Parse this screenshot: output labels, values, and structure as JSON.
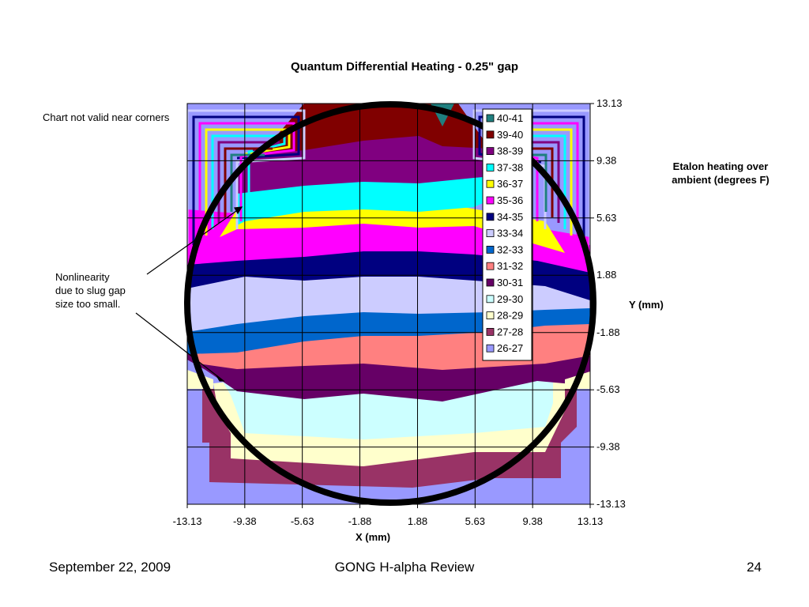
{
  "slide": {
    "title": "Quantum Differential Heating - 0.25\" gap",
    "note_corners": "Chart not valid near corners",
    "note_nonlinearity": [
      "Nonlinearity",
      "due to slug gap",
      "size too small."
    ],
    "colorbar_title": [
      "Etalon heating over",
      "ambient (degrees F)"
    ],
    "footer": {
      "date": "September 22, 2009",
      "center": "GONG H-alpha Review",
      "page": "24"
    }
  },
  "chart_data": {
    "type": "heatmap",
    "title": "Quantum Differential Heating - 0.25\" gap",
    "xlabel": "X (mm)",
    "ylabel": "Y (mm)",
    "x_ticks": [
      "-13.13",
      "-9.38",
      "-5.63",
      "-1.88",
      "1.88",
      "5.63",
      "9.38",
      "13.13"
    ],
    "y_ticks": [
      "13.13",
      "9.38",
      "5.63",
      "1.88",
      "-1.88",
      "-5.63",
      "-9.38",
      "-13.13"
    ],
    "xlim": [
      -13.13,
      13.13
    ],
    "ylim": [
      -13.13,
      13.13
    ],
    "grid": true,
    "legend_position": "top-right, inside plot",
    "legend": [
      {
        "label": "40-41",
        "color": "#1f7f7f"
      },
      {
        "label": "39-40",
        "color": "#800000"
      },
      {
        "label": "38-39",
        "color": "#800080"
      },
      {
        "label": "37-38",
        "color": "#00ffff"
      },
      {
        "label": "36-37",
        "color": "#ffff00"
      },
      {
        "label": "35-36",
        "color": "#ff00ff"
      },
      {
        "label": "34-35",
        "color": "#000080"
      },
      {
        "label": "33-34",
        "color": "#ccccff"
      },
      {
        "label": "32-33",
        "color": "#0066cc"
      },
      {
        "label": "31-32",
        "color": "#ff8080"
      },
      {
        "label": "30-31",
        "color": "#660066"
      },
      {
        "label": "29-30",
        "color": "#ccffff"
      },
      {
        "label": "28-29",
        "color": "#ffffcc"
      },
      {
        "label": "27-28",
        "color": "#993366"
      },
      {
        "label": "26-27",
        "color": "#9999ff"
      }
    ],
    "x_grid_values": [
      -13.13,
      -9.38,
      -5.63,
      -1.88,
      1.88,
      5.63,
      9.38,
      13.13
    ],
    "center_column_band_y_bounds": {
      "description_note": "approximate contour boundary positions (Y in mm) along X = 0",
      "39-40_lower": 11.0,
      "38-39_lower": 8.9,
      "37-38_lower": 6.5,
      "36-37_lower": 4.6,
      "35-36_lower": 2.2,
      "34-35_lower": 0.7,
      "33-34_lower": -1.2,
      "32-33_lower": -2.5,
      "31-32_lower": -5.0,
      "30-31_lower": -6.3,
      "29-30_lower": -9.4,
      "28-29_lower": -10.8,
      "27-28_lower": -13.13
    },
    "annotation_circle": {
      "center_x": 0,
      "center_y": 0,
      "radius": 13.13
    }
  }
}
